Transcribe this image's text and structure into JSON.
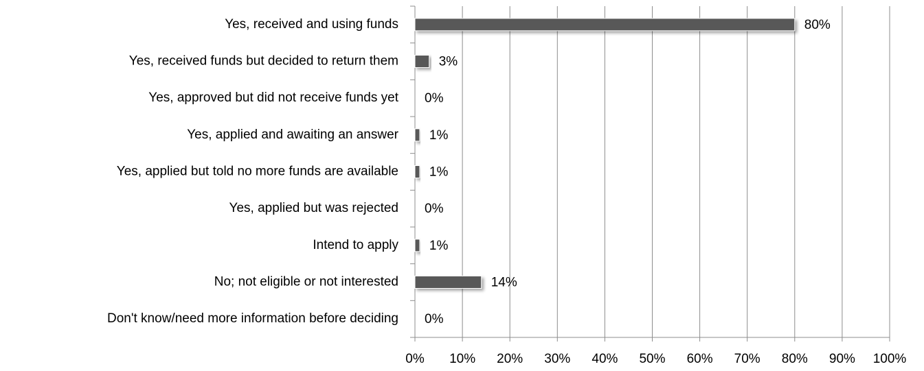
{
  "chart_data": {
    "type": "bar",
    "orientation": "horizontal",
    "categories": [
      "Yes, received and using funds",
      "Yes, received funds but decided to return them",
      "Yes, approved but did not receive funds yet",
      "Yes, applied and awaiting an answer",
      "Yes, applied but told no more funds are available",
      "Yes, applied but was rejected",
      "Intend to apply",
      "No; not eligible or not interested",
      "Don't know/need more information before deciding"
    ],
    "values": [
      80,
      3,
      0,
      1,
      1,
      0,
      1,
      14,
      0
    ],
    "value_labels": [
      "80%",
      "3%",
      "0%",
      "1%",
      "1%",
      "0%",
      "1%",
      "14%",
      "0%"
    ],
    "color": "#595959",
    "xlim": [
      0,
      100
    ],
    "xticks": [
      {
        "value": 0,
        "label": "0%"
      },
      {
        "value": 10,
        "label": "10%"
      },
      {
        "value": 20,
        "label": "20%"
      },
      {
        "value": 30,
        "label": "30%"
      },
      {
        "value": 40,
        "label": "40%"
      },
      {
        "value": 50,
        "label": "50%"
      },
      {
        "value": 60,
        "label": "60%"
      },
      {
        "value": 70,
        "label": "70%"
      },
      {
        "value": 80,
        "label": "80%"
      },
      {
        "value": 90,
        "label": "90%"
      },
      {
        "value": 100,
        "label": "100%"
      }
    ],
    "grid": true
  }
}
